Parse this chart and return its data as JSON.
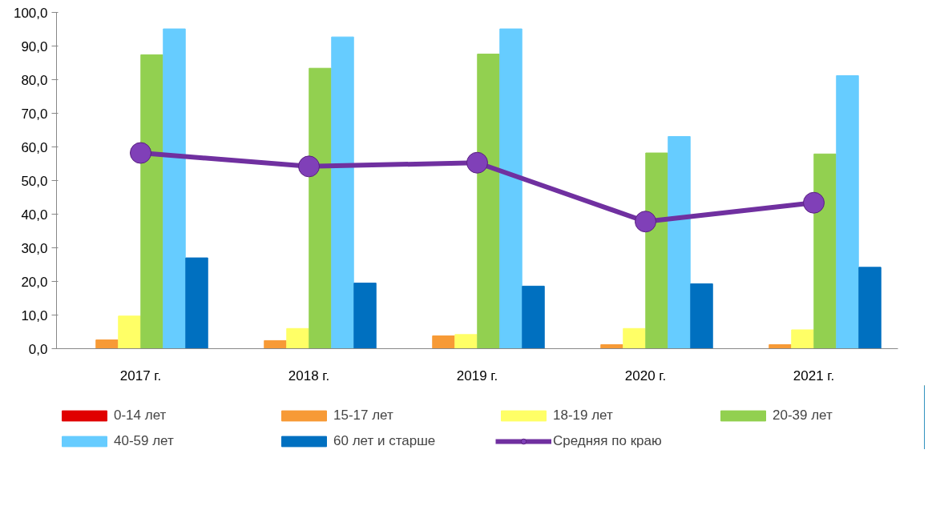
{
  "chart_data": {
    "type": "bar",
    "categories": [
      "2017 г.",
      "2018 г.",
      "2019 г.",
      "2020 г.",
      "2021 г."
    ],
    "series": [
      {
        "name": "0-14 лет",
        "color": "#e00000",
        "values": [
          0,
          0,
          0,
          0,
          0
        ]
      },
      {
        "name": "15-17 лет",
        "color": "#f79a36",
        "values": [
          2.6,
          2.4,
          3.8,
          1.2,
          1.2
        ]
      },
      {
        "name": "18-19 лет",
        "color": "#ffff66",
        "values": [
          9.7,
          6.0,
          4.2,
          6.0,
          5.6
        ]
      },
      {
        "name": "20-39 лет",
        "color": "#92d050",
        "values": [
          87.4,
          83.4,
          87.6,
          58.2,
          57.9
        ]
      },
      {
        "name": "40-59 лет",
        "color": "#66ccff",
        "values": [
          95.1,
          92.7,
          95.1,
          63.1,
          81.2
        ]
      },
      {
        "name": "60 лет и старше",
        "color": "#0070c0",
        "values": [
          27.0,
          19.5,
          18.6,
          19.3,
          24.2
        ]
      },
      {
        "name": "Средняя по краю",
        "type": "line",
        "color": "#7030a0",
        "marker": "circle",
        "values": [
          58.2,
          54.2,
          55.3,
          37.8,
          43.4
        ]
      }
    ],
    "ylim": [
      0,
      100
    ],
    "yticks": [
      {
        "value": 0,
        "label": "0,0"
      },
      {
        "value": 10,
        "label": "10,0"
      },
      {
        "value": 20,
        "label": "20,0"
      },
      {
        "value": 30,
        "label": "30,0"
      },
      {
        "value": 40,
        "label": "40,0"
      },
      {
        "value": 50,
        "label": "50,0"
      },
      {
        "value": 60,
        "label": "60,0"
      },
      {
        "value": 70,
        "label": "70,0"
      },
      {
        "value": 80,
        "label": "80,0"
      },
      {
        "value": 90,
        "label": "90,0"
      },
      {
        "value": 100,
        "label": "100,0"
      }
    ],
    "grid": false,
    "legend": "bottom"
  }
}
